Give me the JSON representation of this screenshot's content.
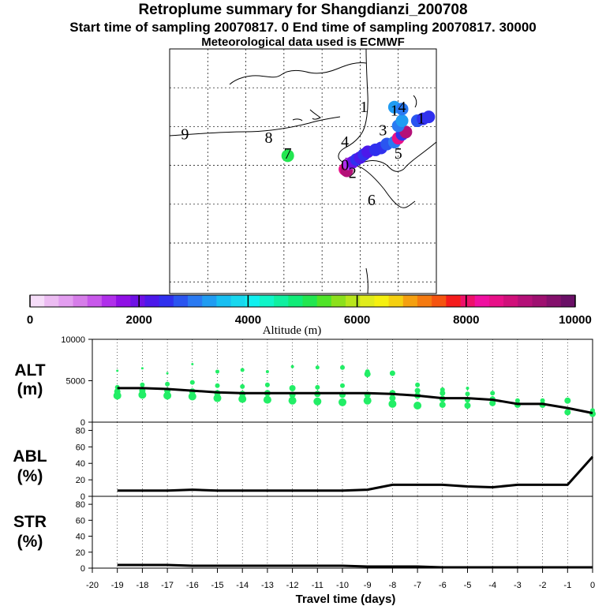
{
  "header": {
    "title": "Retroplume summary for Shangdianzi_200708",
    "subtitle": "Start time of sampling 20070817.     0     End time of sampling 20070817. 30000",
    "met": "Meteorological data used is ECMWF"
  },
  "map": {
    "labels": [
      {
        "text": "9",
        "lon": -26,
        "lat": 8
      },
      {
        "text": "8",
        "lon": -4,
        "lat": 7
      },
      {
        "text": "7",
        "lon": 1,
        "lat": 3
      },
      {
        "text": "4",
        "lon": 16,
        "lat": 6
      },
      {
        "text": "6",
        "lon": 23,
        "lat": -9
      },
      {
        "text": "5",
        "lon": 30,
        "lat": 3
      },
      {
        "text": "3",
        "lon": 26,
        "lat": 9
      },
      {
        "text": "2",
        "lon": 18,
        "lat": -2
      },
      {
        "text": "1",
        "lon": 21,
        "lat": 15
      },
      {
        "text": "1",
        "lon": 36,
        "lat": 12
      },
      {
        "text": "0",
        "lon": 16,
        "lat": 0
      },
      {
        "text": "1",
        "lon": 29,
        "lat": 14
      },
      {
        "text": "4",
        "lon": 31,
        "lat": 15
      }
    ],
    "points": [
      {
        "lon": 16,
        "lat": -1,
        "alt": 8500
      },
      {
        "lon": 16.5,
        "lat": -1.4,
        "alt": 9000
      },
      {
        "lon": 17,
        "lat": 0.4,
        "alt": 1500
      },
      {
        "lon": 18,
        "lat": 0.8,
        "alt": 2000
      },
      {
        "lon": 19,
        "lat": 1.5,
        "alt": 2500
      },
      {
        "lon": 20,
        "lat": 2,
        "alt": 2300
      },
      {
        "lon": 21,
        "lat": 2.8,
        "alt": 2400
      },
      {
        "lon": 22,
        "lat": 3.5,
        "alt": 2200
      },
      {
        "lon": 24,
        "lat": 4,
        "alt": 2500
      },
      {
        "lon": 25.5,
        "lat": 4.5,
        "alt": 2600
      },
      {
        "lon": 27,
        "lat": 5.5,
        "alt": 2800
      },
      {
        "lon": 29,
        "lat": 6,
        "alt": 3000
      },
      {
        "lon": 30,
        "lat": 7,
        "alt": 8600
      },
      {
        "lon": 31,
        "lat": 8,
        "alt": 2600
      },
      {
        "lon": 32,
        "lat": 8.6,
        "alt": 9200
      },
      {
        "lon": 30,
        "lat": 10.2,
        "alt": 2900
      },
      {
        "lon": 31,
        "lat": 11.5,
        "alt": 3300
      },
      {
        "lon": 35,
        "lat": 11.5,
        "alt": 2700
      },
      {
        "lon": 36.5,
        "lat": 12,
        "alt": 2400
      },
      {
        "lon": 38,
        "lat": 12.5,
        "alt": 2600
      },
      {
        "lon": 29,
        "lat": 15,
        "alt": 3200
      },
      {
        "lon": 31,
        "lat": 14.5,
        "alt": 3100
      },
      {
        "lon": 1,
        "lat": 2.5,
        "alt": 5200
      }
    ]
  },
  "colorbar": {
    "xlabel": "Altitude (m)",
    "min": 0,
    "max": 10000,
    "ticks": [
      "0",
      "2000",
      "4000",
      "6000",
      "8000",
      "10000"
    ],
    "colors": [
      "#f6ddf9",
      "#ecbcf2",
      "#e39ef0",
      "#d67de9",
      "#c858ea",
      "#b02fea",
      "#9010e5",
      "#6e10e5",
      "#4c18ea",
      "#3030ee",
      "#2a55f0",
      "#2a7af2",
      "#209cf2",
      "#18bff2",
      "#18d8ef",
      "#10f0f0",
      "#10f5c8",
      "#10f0a0",
      "#10ec78",
      "#22e650",
      "#50e428",
      "#8ce01c",
      "#b8e61c",
      "#e0ec1c",
      "#f5f010",
      "#f5d010",
      "#f5a010",
      "#f57a10",
      "#f55410",
      "#f51c1c",
      "#ee106a",
      "#f010a0",
      "#e81088",
      "#d0107a",
      "#b41078",
      "#9e1070",
      "#84106c",
      "#6a1066"
    ]
  },
  "chart_data": [
    {
      "type": "scatter+line",
      "panel": "ALT",
      "title": "ALT",
      "ylabel": "(m)",
      "ylim": [
        0,
        10000
      ],
      "yticks": [
        "10000",
        "5000",
        "0"
      ],
      "x": [
        -19,
        -18,
        -17,
        -16,
        -15,
        -14,
        -13,
        -12,
        -11,
        -10,
        -9,
        -8,
        -7,
        -6,
        -5,
        -4,
        -3,
        -2,
        -1,
        0
      ],
      "line": [
        4100,
        4100,
        4000,
        3800,
        3600,
        3500,
        3500,
        3500,
        3500,
        3500,
        3500,
        3400,
        3200,
        2900,
        2900,
        2700,
        2200,
        2200,
        1700,
        1100
      ],
      "points": [
        {
          "x": -19,
          "y": 3200,
          "s": 5
        },
        {
          "x": -19,
          "y": 3700,
          "s": 4
        },
        {
          "x": -19,
          "y": 4200,
          "s": 3
        },
        {
          "x": -19,
          "y": 6200,
          "s": 1.5
        },
        {
          "x": -18,
          "y": 3300,
          "s": 5
        },
        {
          "x": -18,
          "y": 3800,
          "s": 4
        },
        {
          "x": -18,
          "y": 4500,
          "s": 3
        },
        {
          "x": -18,
          "y": 6500,
          "s": 1.5
        },
        {
          "x": -17,
          "y": 3200,
          "s": 5
        },
        {
          "x": -17,
          "y": 3800,
          "s": 4
        },
        {
          "x": -17,
          "y": 4600,
          "s": 3
        },
        {
          "x": -17,
          "y": 5900,
          "s": 1.5
        },
        {
          "x": -16,
          "y": 3100,
          "s": 5
        },
        {
          "x": -16,
          "y": 3700,
          "s": 4
        },
        {
          "x": -16,
          "y": 4800,
          "s": 3
        },
        {
          "x": -16,
          "y": 7000,
          "s": 1.5
        },
        {
          "x": -15,
          "y": 2900,
          "s": 5
        },
        {
          "x": -15,
          "y": 3500,
          "s": 4
        },
        {
          "x": -15,
          "y": 4400,
          "s": 3
        },
        {
          "x": -15,
          "y": 6100,
          "s": 2.5
        },
        {
          "x": -14,
          "y": 2800,
          "s": 5
        },
        {
          "x": -14,
          "y": 3400,
          "s": 4
        },
        {
          "x": -14,
          "y": 4300,
          "s": 3
        },
        {
          "x": -14,
          "y": 6300,
          "s": 2.5
        },
        {
          "x": -13,
          "y": 2700,
          "s": 5
        },
        {
          "x": -13,
          "y": 3500,
          "s": 4
        },
        {
          "x": -13,
          "y": 4500,
          "s": 3
        },
        {
          "x": -13,
          "y": 6100,
          "s": 2
        },
        {
          "x": -12,
          "y": 2600,
          "s": 5
        },
        {
          "x": -12,
          "y": 3300,
          "s": 4
        },
        {
          "x": -12,
          "y": 4100,
          "s": 4
        },
        {
          "x": -12,
          "y": 6700,
          "s": 2
        },
        {
          "x": -11,
          "y": 2500,
          "s": 5
        },
        {
          "x": -11,
          "y": 3400,
          "s": 4
        },
        {
          "x": -11,
          "y": 4200,
          "s": 3
        },
        {
          "x": -11,
          "y": 6600,
          "s": 2.5
        },
        {
          "x": -10,
          "y": 2400,
          "s": 5
        },
        {
          "x": -10,
          "y": 3300,
          "s": 4
        },
        {
          "x": -10,
          "y": 4400,
          "s": 3
        },
        {
          "x": -10,
          "y": 6600,
          "s": 3
        },
        {
          "x": -9,
          "y": 2600,
          "s": 5
        },
        {
          "x": -9,
          "y": 3300,
          "s": 4
        },
        {
          "x": -9,
          "y": 5800,
          "s": 4
        },
        {
          "x": -9,
          "y": 6100,
          "s": 3
        },
        {
          "x": -8,
          "y": 2200,
          "s": 5
        },
        {
          "x": -8,
          "y": 2900,
          "s": 4
        },
        {
          "x": -8,
          "y": 3500,
          "s": 4
        },
        {
          "x": -8,
          "y": 5900,
          "s": 3.5
        },
        {
          "x": -7,
          "y": 2000,
          "s": 5
        },
        {
          "x": -7,
          "y": 3200,
          "s": 4
        },
        {
          "x": -7,
          "y": 3800,
          "s": 3.5
        },
        {
          "x": -7,
          "y": 4500,
          "s": 3
        },
        {
          "x": -6,
          "y": 2100,
          "s": 4
        },
        {
          "x": -6,
          "y": 2800,
          "s": 4
        },
        {
          "x": -6,
          "y": 3500,
          "s": 3.5
        },
        {
          "x": -6,
          "y": 3900,
          "s": 3
        },
        {
          "x": -5,
          "y": 2000,
          "s": 4
        },
        {
          "x": -5,
          "y": 2700,
          "s": 3.5
        },
        {
          "x": -5,
          "y": 3400,
          "s": 3
        },
        {
          "x": -5,
          "y": 4100,
          "s": 2
        },
        {
          "x": -4,
          "y": 2300,
          "s": 4
        },
        {
          "x": -4,
          "y": 2800,
          "s": 3.5
        },
        {
          "x": -4,
          "y": 3500,
          "s": 3
        },
        {
          "x": -3,
          "y": 2100,
          "s": 4
        },
        {
          "x": -3,
          "y": 2600,
          "s": 3
        },
        {
          "x": -2,
          "y": 2100,
          "s": 4
        },
        {
          "x": -2,
          "y": 2600,
          "s": 3
        },
        {
          "x": -1,
          "y": 1200,
          "s": 4
        },
        {
          "x": -1,
          "y": 2600,
          "s": 4
        },
        {
          "x": 0,
          "y": 1000,
          "s": 4
        },
        {
          "x": 0,
          "y": 1400,
          "s": 3
        }
      ]
    },
    {
      "type": "line",
      "panel": "ABL",
      "title": "ABL",
      "ylabel": "(%)",
      "ylim": [
        0,
        90
      ],
      "yticks": [
        "80",
        "60",
        "40",
        "20",
        "0"
      ],
      "x": [
        -19,
        -18,
        -17,
        -16,
        -15,
        -14,
        -13,
        -12,
        -11,
        -10,
        -9,
        -8,
        -7,
        -6,
        -5,
        -4,
        -3,
        -2,
        -1,
        0
      ],
      "values": [
        7,
        7,
        7,
        8,
        7,
        7,
        7,
        7,
        7,
        7,
        8,
        14,
        14,
        14,
        12,
        11,
        14,
        14,
        14,
        48
      ]
    },
    {
      "type": "line",
      "panel": "STR",
      "title": "STR",
      "ylabel": "(%)",
      "ylim": [
        0,
        90
      ],
      "yticks": [
        "80",
        "60",
        "40",
        "20",
        "0"
      ],
      "x": [
        -19,
        -18,
        -17,
        -16,
        -15,
        -14,
        -13,
        -12,
        -11,
        -10,
        -9,
        -8,
        -7,
        -6,
        -5,
        -4,
        -3,
        -2,
        -1,
        0
      ],
      "values": [
        4,
        4,
        4,
        3,
        3,
        3,
        3,
        3,
        3,
        3,
        2,
        2,
        2,
        1,
        1,
        1,
        1,
        1,
        1,
        1
      ]
    }
  ],
  "xaxis": {
    "label": "Travel time (days)",
    "ticks": [
      "-20",
      "-19",
      "-18",
      "-17",
      "-16",
      "-15",
      "-14",
      "-13",
      "-12",
      "-11",
      "-10",
      "-9",
      "-8",
      "-7",
      "-6",
      "-5",
      "-4",
      "-3",
      "-2",
      "-1",
      "0"
    ]
  },
  "style": {
    "point_color": "#22ee66",
    "line_color": "#000000"
  }
}
